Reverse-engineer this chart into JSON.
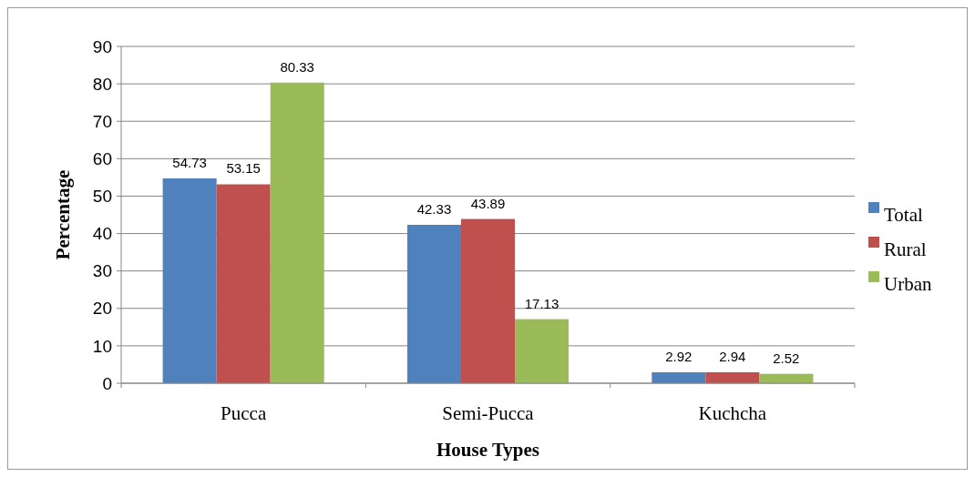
{
  "chart_data": {
    "type": "bar",
    "xlabel": "House Types",
    "ylabel": "Percentage",
    "categories": [
      "Pucca",
      "Semi-Pucca",
      "Kuchcha"
    ],
    "series": [
      {
        "name": "Total",
        "color": "#4f81bd",
        "values": [
          54.73,
          42.33,
          2.92
        ]
      },
      {
        "name": "Rural",
        "color": "#c0504d",
        "values": [
          53.15,
          43.89,
          2.94
        ]
      },
      {
        "name": "Urban",
        "color": "#9bbb59",
        "values": [
          80.33,
          17.13,
          2.52
        ]
      }
    ],
    "ylim": [
      0,
      90
    ],
    "yticks": [
      0,
      10,
      20,
      30,
      40,
      50,
      60,
      70,
      80,
      90
    ],
    "grid": "y",
    "legend": "right",
    "data_labels": true
  }
}
